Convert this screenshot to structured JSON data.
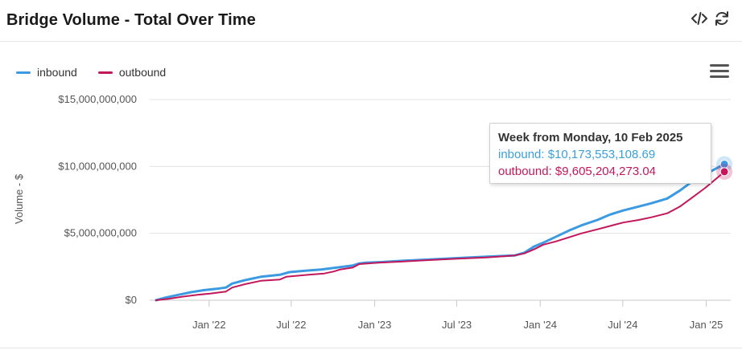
{
  "header": {
    "title": "Bridge Volume - Total Over Time",
    "icons": [
      "code-icon",
      "refresh-icon"
    ]
  },
  "legend": {
    "items": [
      {
        "label": "inbound",
        "color": "#3b9ae1"
      },
      {
        "label": "outbound",
        "color": "#c2185b"
      }
    ]
  },
  "menu": {
    "icon": "hamburger-menu-icon"
  },
  "tooltip": {
    "header": "Week from Monday, 10 Feb 2025",
    "inbound_text": "inbound: $10,173,553,108.69",
    "outbound_text": "outbound: $9,605,204,273.04"
  },
  "chart_data": {
    "type": "line",
    "title": "Bridge Volume - Total Over Time",
    "ylabel": "Volume - $",
    "xlabel": "",
    "ylim": [
      0,
      15000000000
    ],
    "xlim": [
      "2021-08-23",
      "2025-02-24"
    ],
    "y_ticks": [
      {
        "value": 0,
        "label": "$0"
      },
      {
        "value": 5000000000,
        "label": "$5,000,000,000"
      },
      {
        "value": 10000000000,
        "label": "$10,000,000,000"
      },
      {
        "value": 15000000000,
        "label": "$15,000,000,000"
      }
    ],
    "x_ticks": [
      {
        "date": "2022-01-01",
        "label": "Jan '22"
      },
      {
        "date": "2022-07-01",
        "label": "Jul '22"
      },
      {
        "date": "2023-01-01",
        "label": "Jan '23"
      },
      {
        "date": "2023-07-01",
        "label": "Jul '23"
      },
      {
        "date": "2024-01-01",
        "label": "Jan '24"
      },
      {
        "date": "2024-07-01",
        "label": "Jul '24"
      },
      {
        "date": "2025-01-01",
        "label": "Jan '25"
      }
    ],
    "grid": true,
    "legend_position": "top-left",
    "highlight": {
      "date": "2025-02-10"
    },
    "series": [
      {
        "name": "inbound",
        "color": "#3b9ae1",
        "points": [
          [
            "2021-09-06",
            0
          ],
          [
            "2021-09-27",
            200000000
          ],
          [
            "2021-10-25",
            400000000
          ],
          [
            "2021-11-22",
            600000000
          ],
          [
            "2021-12-20",
            750000000
          ],
          [
            "2022-01-17",
            850000000
          ],
          [
            "2022-02-07",
            950000000
          ],
          [
            "2022-02-21",
            1250000000
          ],
          [
            "2022-03-21",
            1500000000
          ],
          [
            "2022-04-25",
            1750000000
          ],
          [
            "2022-06-06",
            1900000000
          ],
          [
            "2022-06-27",
            2100000000
          ],
          [
            "2022-08-01",
            2200000000
          ],
          [
            "2022-09-05",
            2300000000
          ],
          [
            "2022-10-10",
            2450000000
          ],
          [
            "2022-11-14",
            2600000000
          ],
          [
            "2022-11-28",
            2750000000
          ],
          [
            "2022-12-12",
            2800000000
          ],
          [
            "2023-01-16",
            2850000000
          ],
          [
            "2023-03-06",
            2950000000
          ],
          [
            "2023-05-01",
            3050000000
          ],
          [
            "2023-07-03",
            3150000000
          ],
          [
            "2023-09-04",
            3250000000
          ],
          [
            "2023-11-06",
            3350000000
          ],
          [
            "2023-11-27",
            3550000000
          ],
          [
            "2023-12-18",
            4000000000
          ],
          [
            "2024-01-08",
            4300000000
          ],
          [
            "2024-02-05",
            4750000000
          ],
          [
            "2024-03-04",
            5200000000
          ],
          [
            "2024-04-01",
            5600000000
          ],
          [
            "2024-05-06",
            6000000000
          ],
          [
            "2024-06-03",
            6400000000
          ],
          [
            "2024-07-01",
            6700000000
          ],
          [
            "2024-08-05",
            7000000000
          ],
          [
            "2024-09-02",
            7250000000
          ],
          [
            "2024-10-07",
            7600000000
          ],
          [
            "2024-11-04",
            8200000000
          ],
          [
            "2024-12-02",
            8900000000
          ],
          [
            "2024-12-30",
            9400000000
          ],
          [
            "2025-01-20",
            9800000000
          ],
          [
            "2025-02-10",
            10173553108.69
          ]
        ]
      },
      {
        "name": "outbound",
        "color": "#c2185b",
        "points": [
          [
            "2021-09-06",
            0
          ],
          [
            "2021-10-04",
            100000000
          ],
          [
            "2021-11-01",
            250000000
          ],
          [
            "2021-12-06",
            400000000
          ],
          [
            "2022-01-03",
            500000000
          ],
          [
            "2022-02-07",
            650000000
          ],
          [
            "2022-02-21",
            950000000
          ],
          [
            "2022-03-21",
            1200000000
          ],
          [
            "2022-04-25",
            1450000000
          ],
          [
            "2022-06-06",
            1550000000
          ],
          [
            "2022-06-20",
            1750000000
          ],
          [
            "2022-08-08",
            1900000000
          ],
          [
            "2022-09-12",
            2000000000
          ],
          [
            "2022-10-03",
            2150000000
          ],
          [
            "2022-10-17",
            2300000000
          ],
          [
            "2022-11-14",
            2450000000
          ],
          [
            "2022-11-28",
            2700000000
          ],
          [
            "2023-01-09",
            2800000000
          ],
          [
            "2023-03-06",
            2900000000
          ],
          [
            "2023-05-01",
            3000000000
          ],
          [
            "2023-07-03",
            3100000000
          ],
          [
            "2023-09-04",
            3200000000
          ],
          [
            "2023-11-06",
            3350000000
          ],
          [
            "2023-11-27",
            3500000000
          ],
          [
            "2023-12-18",
            3800000000
          ],
          [
            "2024-01-08",
            4150000000
          ],
          [
            "2024-02-05",
            4400000000
          ],
          [
            "2024-03-04",
            4700000000
          ],
          [
            "2024-04-01",
            5000000000
          ],
          [
            "2024-05-06",
            5300000000
          ],
          [
            "2024-06-03",
            5550000000
          ],
          [
            "2024-07-01",
            5800000000
          ],
          [
            "2024-08-05",
            6000000000
          ],
          [
            "2024-09-02",
            6200000000
          ],
          [
            "2024-10-07",
            6500000000
          ],
          [
            "2024-11-04",
            7000000000
          ],
          [
            "2024-12-02",
            7700000000
          ],
          [
            "2024-12-30",
            8400000000
          ],
          [
            "2025-01-20",
            9000000000
          ],
          [
            "2025-02-10",
            9605204273.04
          ]
        ]
      }
    ]
  }
}
